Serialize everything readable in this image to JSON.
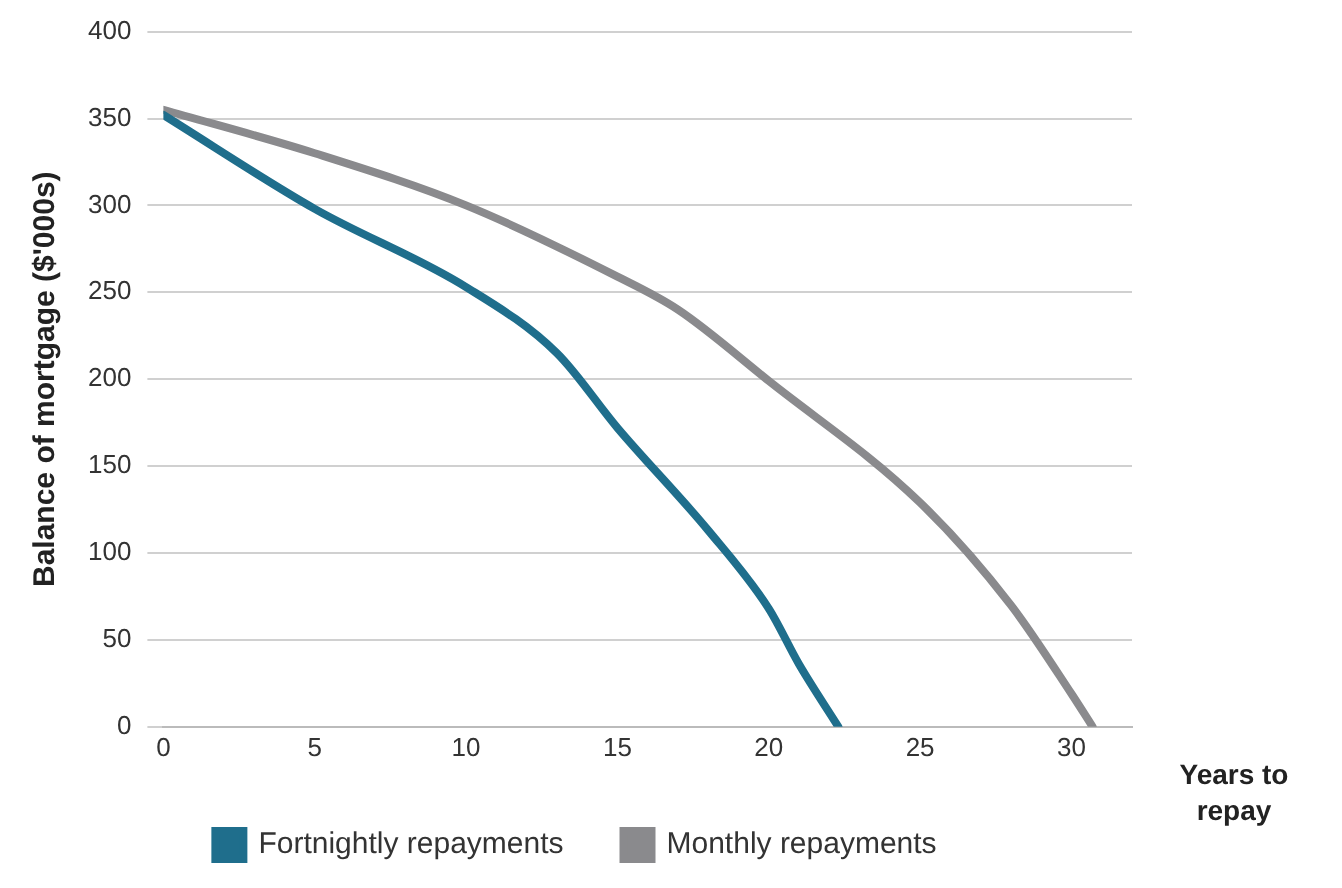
{
  "chart_data": {
    "type": "line",
    "xlabel": "Years to repay",
    "ylabel": "Balance of mortgage ($'000s)",
    "xlim": [
      0,
      32
    ],
    "xticks": [
      0,
      5,
      10,
      15,
      20,
      25,
      30
    ],
    "ylim": [
      0,
      400
    ],
    "yticks": [
      0,
      50,
      100,
      150,
      200,
      250,
      300,
      350,
      400
    ],
    "grid": "y",
    "legend": "bottom",
    "marker": "none",
    "line_style": "solid",
    "series": [
      {
        "name": "Fortnightly repayments",
        "color": "#1f6e8c",
        "x": [
          0,
          5,
          10,
          13,
          15,
          18,
          20,
          21,
          22.3
        ],
        "values": [
          352,
          298,
          253,
          215,
          172,
          113,
          68,
          36,
          0
        ]
      },
      {
        "name": "Monthly repayments",
        "color": "#8a8a8d",
        "x": [
          0,
          5,
          10,
          15,
          17,
          20,
          25,
          28,
          30,
          30.7
        ],
        "values": [
          355,
          330,
          300,
          259,
          240,
          199,
          129,
          70,
          19,
          0
        ]
      }
    ]
  }
}
